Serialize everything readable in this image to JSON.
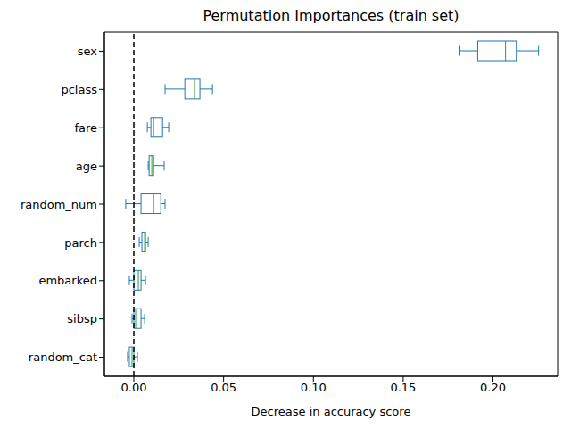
{
  "chart_data": {
    "type": "box",
    "orientation": "horizontal",
    "title": "Permutation Importances (train set)",
    "xlabel": "Decrease in accuracy score",
    "categories": [
      "sex",
      "pclass",
      "fare",
      "age",
      "random_num",
      "parch",
      "embarked",
      "sibsp",
      "random_cat"
    ],
    "boxes": [
      {
        "min": 0.1816,
        "q1": 0.1915,
        "median": 0.207,
        "q3": 0.213,
        "max": 0.2254
      },
      {
        "min": 0.0174,
        "q1": 0.0284,
        "median": 0.0338,
        "q3": 0.0368,
        "max": 0.0438
      },
      {
        "min": 0.0075,
        "q1": 0.0095,
        "median": 0.011,
        "q3": 0.016,
        "max": 0.0194
      },
      {
        "min": 0.008,
        "q1": 0.0085,
        "median": 0.01,
        "q3": 0.011,
        "max": 0.0169
      },
      {
        "min": -0.0045,
        "q1": 0.004,
        "median": 0.011,
        "q3": 0.015,
        "max": 0.0174
      },
      {
        "min": 0.003,
        "q1": 0.0045,
        "median": 0.006,
        "q3": 0.0065,
        "max": 0.008
      },
      {
        "min": -0.0025,
        "q1": 0,
        "median": 0.0025,
        "q3": 0.004,
        "max": 0.0065
      },
      {
        "min": -0.001,
        "q1": 0,
        "median": 0.001,
        "q3": 0.004,
        "max": 0.006
      },
      {
        "min": -0.0035,
        "q1": -0.0025,
        "median": -0.001,
        "q3": 0,
        "max": 0.002
      }
    ],
    "color": "#1f77b4",
    "xlim": [
      -0.0164,
      0.236
    ],
    "xticks": [
      {
        "value": 0,
        "label": "0.00"
      },
      {
        "value": 0.05,
        "label": "0.05"
      },
      {
        "value": 0.1,
        "label": "0.10"
      },
      {
        "value": 0.15,
        "label": "0.15"
      },
      {
        "value": 0.2,
        "label": "0.20"
      }
    ],
    "vline": 0,
    "grid": false
  }
}
